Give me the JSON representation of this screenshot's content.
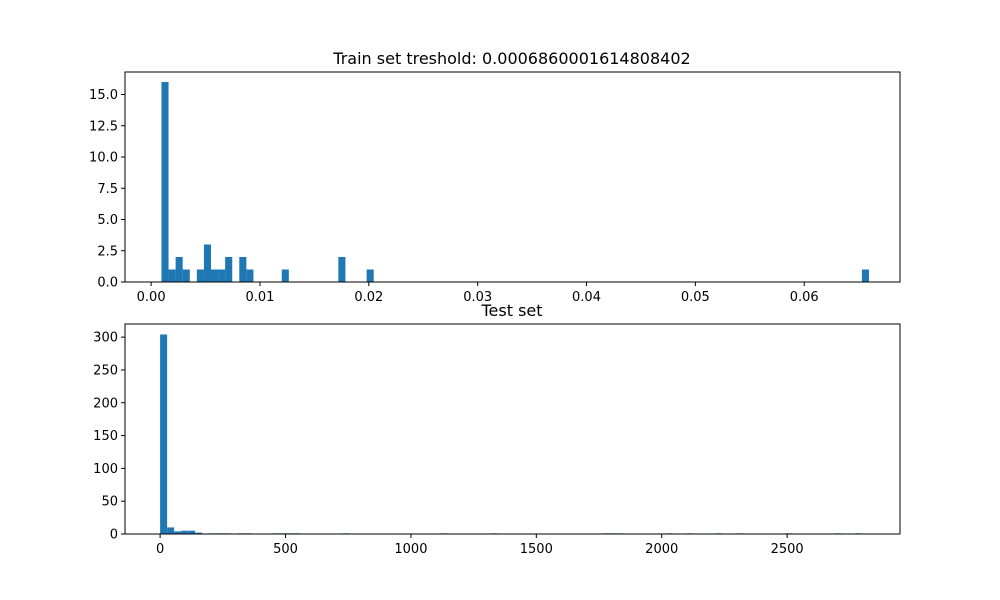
{
  "chart_data": [
    {
      "type": "bar",
      "title": "Train set treshold: 0.0006860001614808402",
      "xlabel": "",
      "ylabel": "",
      "xlim": [
        -0.0024,
        0.0688
      ],
      "ylim": [
        0,
        16.8
      ],
      "xticks": [
        0.0,
        0.01,
        0.02,
        0.03,
        0.04,
        0.05,
        0.06
      ],
      "xtick_labels": [
        "0.00",
        "0.01",
        "0.02",
        "0.03",
        "0.04",
        "0.05",
        "0.06"
      ],
      "yticks": [
        0.0,
        2.5,
        5.0,
        7.5,
        10.0,
        12.5,
        15.0
      ],
      "ytick_labels": [
        "0.0",
        "2.5",
        "5.0",
        "7.5",
        "10.0",
        "12.5",
        "15.0"
      ],
      "color": "#1f77b4",
      "bins": [
        {
          "x0": 0.00095,
          "x1": 0.0016,
          "count": 16
        },
        {
          "x0": 0.0016,
          "x1": 0.00225,
          "count": 1
        },
        {
          "x0": 0.00225,
          "x1": 0.0029,
          "count": 2
        },
        {
          "x0": 0.0029,
          "x1": 0.00355,
          "count": 1
        },
        {
          "x0": 0.0042,
          "x1": 0.00485,
          "count": 1
        },
        {
          "x0": 0.00485,
          "x1": 0.0055,
          "count": 3
        },
        {
          "x0": 0.0055,
          "x1": 0.00615,
          "count": 1
        },
        {
          "x0": 0.00615,
          "x1": 0.0068,
          "count": 1
        },
        {
          "x0": 0.0068,
          "x1": 0.00745,
          "count": 2
        },
        {
          "x0": 0.0081,
          "x1": 0.00875,
          "count": 2
        },
        {
          "x0": 0.00875,
          "x1": 0.0094,
          "count": 1
        },
        {
          "x0": 0.012,
          "x1": 0.01265,
          "count": 1
        },
        {
          "x0": 0.0172,
          "x1": 0.01785,
          "count": 2
        },
        {
          "x0": 0.0198,
          "x1": 0.02045,
          "count": 1
        },
        {
          "x0": 0.0653,
          "x1": 0.06595,
          "count": 1
        }
      ]
    },
    {
      "type": "bar",
      "title": "Test set",
      "xlabel": "",
      "ylabel": "",
      "xlim": [
        -140,
        2950
      ],
      "ylim": [
        0,
        320
      ],
      "xticks": [
        0,
        500,
        1000,
        1500,
        2000,
        2500
      ],
      "xtick_labels": [
        "0",
        "500",
        "1000",
        "1500",
        "2000",
        "2500"
      ],
      "yticks": [
        0,
        50,
        100,
        150,
        200,
        250,
        300
      ],
      "ytick_labels": [
        "0",
        "50",
        "100",
        "150",
        "200",
        "250",
        "300"
      ],
      "color": "#1f77b4",
      "bins": [
        {
          "x0": 0,
          "x1": 28,
          "count": 304
        },
        {
          "x0": 28,
          "x1": 56,
          "count": 10
        },
        {
          "x0": 56,
          "x1": 84,
          "count": 4
        },
        {
          "x0": 84,
          "x1": 112,
          "count": 5
        },
        {
          "x0": 112,
          "x1": 140,
          "count": 5
        },
        {
          "x0": 140,
          "x1": 168,
          "count": 2
        },
        {
          "x0": 196,
          "x1": 224,
          "count": 1
        },
        {
          "x0": 224,
          "x1": 252,
          "count": 1
        },
        {
          "x0": 252,
          "x1": 280,
          "count": 1
        },
        {
          "x0": 308,
          "x1": 336,
          "count": 1
        },
        {
          "x0": 336,
          "x1": 364,
          "count": 1
        },
        {
          "x0": 448,
          "x1": 476,
          "count": 1
        },
        {
          "x0": 476,
          "x1": 504,
          "count": 1
        },
        {
          "x0": 504,
          "x1": 532,
          "count": 1
        },
        {
          "x0": 532,
          "x1": 560,
          "count": 1
        },
        {
          "x0": 728,
          "x1": 756,
          "count": 1
        },
        {
          "x0": 1120,
          "x1": 1148,
          "count": 1
        },
        {
          "x0": 1316,
          "x1": 1344,
          "count": 1
        },
        {
          "x0": 1764,
          "x1": 1792,
          "count": 1
        },
        {
          "x0": 1792,
          "x1": 1820,
          "count": 1
        },
        {
          "x0": 1820,
          "x1": 1848,
          "count": 1
        },
        {
          "x0": 2016,
          "x1": 2044,
          "count": 1
        },
        {
          "x0": 2100,
          "x1": 2128,
          "count": 1
        },
        {
          "x0": 2212,
          "x1": 2240,
          "count": 1
        },
        {
          "x0": 2296,
          "x1": 2324,
          "count": 1
        },
        {
          "x0": 2492,
          "x1": 2520,
          "count": 1
        },
        {
          "x0": 2688,
          "x1": 2716,
          "count": 1
        },
        {
          "x0": 2772,
          "x1": 2800,
          "count": 1
        }
      ]
    }
  ]
}
